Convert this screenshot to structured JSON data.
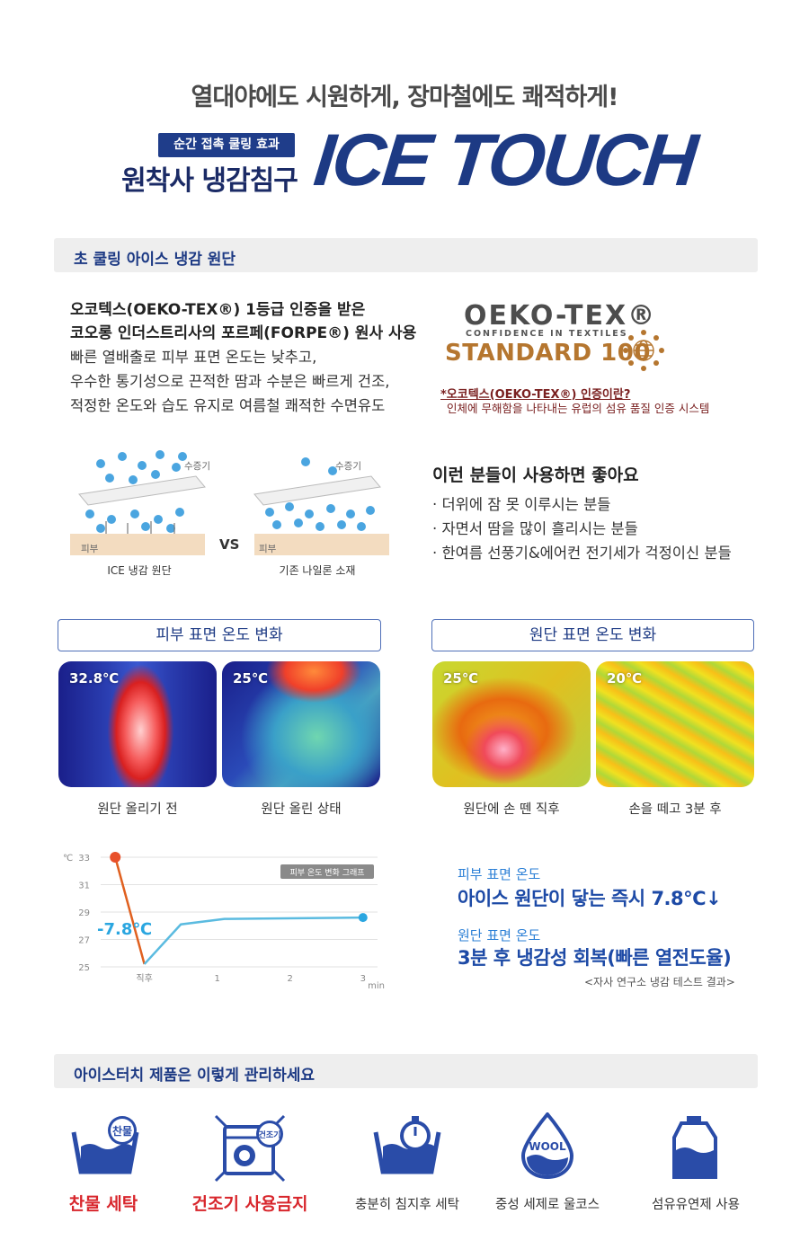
{
  "header": {
    "subtitle": "열대야에도 시원하게, 장마철에도 쾌적하게!",
    "badge": "순간 접촉 쿨링 효과",
    "line": "원착사 냉감침구",
    "brand": "ICE TOUCH"
  },
  "fabric": {
    "section_title": "초 쿨링 아이스 냉감 원단",
    "lead_1": "오코텍스(OEKO-TEX®) 1등급 인증을 받은",
    "lead_2": "코오롱 인더스트리사의 포르페(FORPE®) 원사 사용",
    "body_1": "빠른 열배출로 피부 표면 온도는 낮추고,",
    "body_2": "우수한 통기성으로 끈적한 땀과 수분은 빠르게 건조,",
    "body_3": "적정한 온도와 습도 유지로 여름철 쾌적한 수면유도",
    "oeko_word": "OEKO-TEX®",
    "oeko_tagline": "CONFIDENCE IN TEXTILES",
    "oeko_standard": "STANDARD 100",
    "oeko_question": "*오코텍스(OEKO-TEX®) 인증이란?",
    "oeko_desc": "인체에 무해함을 나타내는 유럽의 섬유 품질 인증 시스템"
  },
  "diagram": {
    "vapor_label": "수증기",
    "skin_label": "피부",
    "vs": "VS",
    "left_caption": "ICE 냉감 원단",
    "right_caption": "기존 나일론 소재"
  },
  "recommend": {
    "title": "이런 분들이 사용하면 좋아요",
    "items": [
      "· 더위에 잠 못 이루시는 분들",
      "· 자면서 땀을 많이 흘리시는 분들",
      "· 한여름 선풍기&에어컨 전기세가 걱정이신 분들"
    ]
  },
  "thermal": {
    "skin_title": "피부 표면 온도 변화",
    "fabric_title": "원단 표면 온도 변화",
    "images": [
      {
        "temp": "32.8℃",
        "caption": "원단 올리기 전"
      },
      {
        "temp": "25℃",
        "caption": "원단 올린 상태"
      },
      {
        "temp": "25℃",
        "caption": "원단에 손 뗀 직후"
      },
      {
        "temp": "20℃",
        "caption": "손을 떼고 3분 후"
      }
    ]
  },
  "chart_data": {
    "type": "line",
    "title": "피부 온도 변화 그래프",
    "xlabel": "min",
    "ylabel": "℃",
    "x_ticks": [
      "직후",
      "1",
      "2",
      "3"
    ],
    "y_ticks": [
      25,
      27,
      29,
      31,
      33
    ],
    "ylim": [
      25,
      33
    ],
    "points": [
      {
        "x": -0.4,
        "y": 33
      },
      {
        "x": 0,
        "y": 25.2
      },
      {
        "x": 0.5,
        "y": 28.1
      },
      {
        "x": 1.1,
        "y": 28.5
      },
      {
        "x": 3,
        "y": 28.6
      }
    ],
    "annotation": "-7.8℃",
    "colors": {
      "drop": "#e0601f",
      "recover": "#5bbbe0",
      "start": "#e8502a",
      "end": "#2aa6e0"
    }
  },
  "results": {
    "skin_label": "피부 표면 온도",
    "skin_value": "아이스 원단이 닿는 즉시 7.8℃↓",
    "fabric_label": "원단 표면 온도",
    "fabric_value": "3분 후 냉감성 회복(빠른 열전도율)",
    "note": "<자사 연구소 냉감 테스트 결과>"
  },
  "care": {
    "section_title": "아이스터치 제품은 이렇게 관리하세요",
    "cold_badge": "찬물",
    "dryer_badge": "건조기",
    "wool_badge": "WOOL",
    "items": [
      {
        "label": "찬물 세탁",
        "icon": "cold-wash-icon"
      },
      {
        "label": "건조기 사용금지",
        "icon": "no-dryer-icon"
      },
      {
        "label": "충분히 침지후 세탁",
        "icon": "soak-timer-icon"
      },
      {
        "label": "중성 세제로 울코스",
        "icon": "wool-drop-icon"
      },
      {
        "label": "섬유유연제 사용",
        "icon": "softener-bottle-icon"
      }
    ]
  }
}
